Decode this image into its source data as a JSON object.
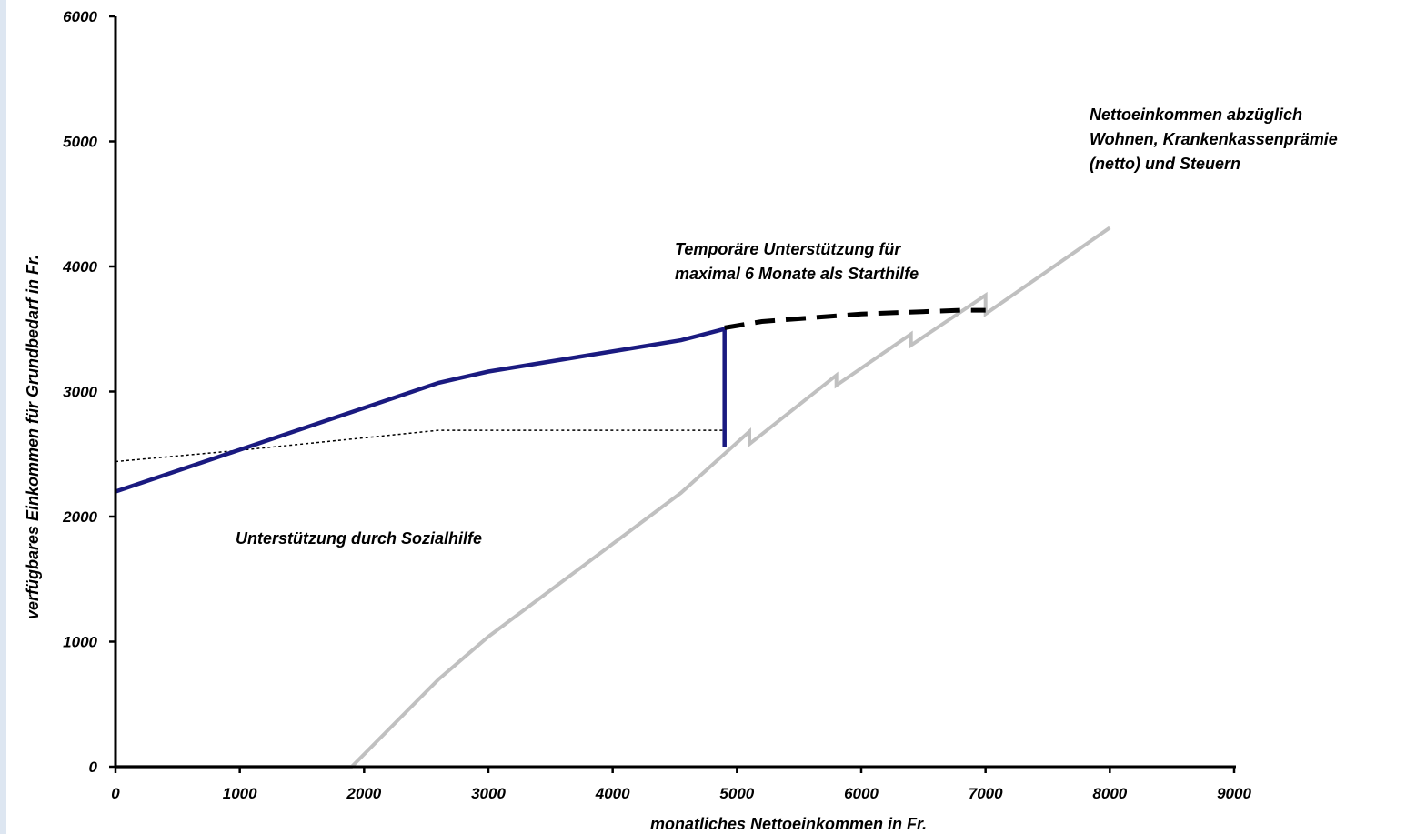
{
  "chart_data": {
    "type": "line",
    "title": "",
    "xlabel": "monatliches Nettoeinkommen in Fr.",
    "ylabel": "verfügbares Einkommen für Grundbedarf in Fr.",
    "xlim": [
      0,
      9000
    ],
    "ylim": [
      0,
      6000
    ],
    "x_ticks": [
      0,
      1000,
      2000,
      3000,
      4000,
      5000,
      6000,
      7000,
      8000,
      9000
    ],
    "y_ticks": [
      0,
      1000,
      2000,
      3000,
      4000,
      5000,
      6000
    ],
    "grid": false,
    "legend": "none",
    "series": [
      {
        "name": "",
        "color": "#1a1a80",
        "style": "solid",
        "points": [
          [
            0,
            2200
          ],
          [
            2600,
            3070
          ],
          [
            3000,
            3160
          ],
          [
            4550,
            3410
          ],
          [
            4900,
            3500
          ],
          [
            4900,
            2560
          ]
        ]
      },
      {
        "name": "",
        "color": "#000000",
        "style": "dashed",
        "points": [
          [
            4900,
            3510
          ],
          [
            5200,
            3560
          ],
          [
            6000,
            3620
          ],
          [
            6800,
            3650
          ],
          [
            7000,
            3650
          ]
        ]
      },
      {
        "name": "",
        "color": "#000000",
        "style": "dotted",
        "points": [
          [
            0,
            2440
          ],
          [
            1000,
            2530
          ],
          [
            2000,
            2630
          ],
          [
            2600,
            2690
          ],
          [
            4900,
            2690
          ]
        ]
      },
      {
        "name": "",
        "color": "#c0c0c0",
        "style": "solid",
        "points": [
          [
            0,
            0
          ],
          [
            1900,
            0
          ],
          [
            2600,
            700
          ],
          [
            3000,
            1040
          ],
          [
            4550,
            2190
          ],
          [
            5100,
            2680
          ],
          [
            5100,
            2580
          ],
          [
            5800,
            3130
          ],
          [
            5800,
            3050
          ],
          [
            6400,
            3460
          ],
          [
            6400,
            3370
          ],
          [
            7000,
            3770
          ],
          [
            7000,
            3620
          ],
          [
            8000,
            4310
          ]
        ]
      }
    ],
    "annotations": [
      {
        "lines": [
          "Nettoeinkommen abzüglich",
          "Wohnen, Krankenkassenprämie",
          "(netto) und Steuern"
        ]
      },
      {
        "lines": [
          "Temporäre Unterstützung für",
          "maximal 6 Monate als Starthilfe"
        ]
      },
      {
        "lines": [
          "Unterstützung durch Sozialhilfe"
        ]
      }
    ]
  }
}
